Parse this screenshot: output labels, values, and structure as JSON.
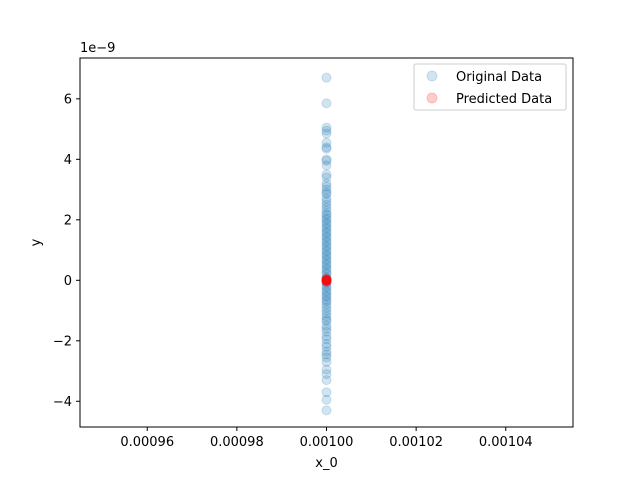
{
  "chart_data": {
    "type": "scatter",
    "title": "",
    "xlabel": "x_0",
    "ylabel": "y",
    "offset_text": "1e−9",
    "xlim": [
      0.000945,
      0.001055
    ],
    "ylim": [
      -4.85,
      7.35
    ],
    "x_ticks": [
      0.00096,
      0.00098,
      0.001,
      0.00102,
      0.00104
    ],
    "x_tick_labels": [
      "0.00096",
      "0.00098",
      "0.00100",
      "0.00102",
      "0.00104"
    ],
    "y_ticks": [
      -4,
      -2,
      0,
      2,
      4,
      6
    ],
    "y_tick_labels": [
      "−4",
      "−2",
      "0",
      "2",
      "4",
      "6"
    ],
    "grid": false,
    "legend_position": "top-right",
    "series": [
      {
        "name": "Original Data",
        "color": "#1f77b4",
        "alpha": 0.2,
        "x_value": 0.001,
        "y_values": [
          6.7,
          5.85,
          5.05,
          4.95,
          4.85,
          4.55,
          4.4,
          4.35,
          4.0,
          3.95,
          3.8,
          3.5,
          3.4,
          3.2,
          3.1,
          3.0,
          2.9,
          2.85,
          2.7,
          2.6,
          2.5,
          2.4,
          2.3,
          2.2,
          2.15,
          2.05,
          2.0,
          1.9,
          1.85,
          1.75,
          1.7,
          1.6,
          1.55,
          1.45,
          1.4,
          1.3,
          1.25,
          1.15,
          1.1,
          1.0,
          0.95,
          0.85,
          0.8,
          0.7,
          0.65,
          0.55,
          0.5,
          0.4,
          0.35,
          0.25,
          0.2,
          0.1,
          0.05,
          -0.05,
          -0.1,
          -0.2,
          -0.25,
          -0.35,
          -0.4,
          -0.5,
          -0.55,
          -0.65,
          -0.7,
          -0.8,
          -0.9,
          -1.0,
          -1.1,
          -1.2,
          -1.3,
          -1.35,
          -1.5,
          -1.6,
          -1.7,
          -1.85,
          -1.95,
          -2.1,
          -2.2,
          -2.35,
          -2.45,
          -2.55,
          -2.7,
          -2.95,
          -3.1,
          -3.3,
          -3.7,
          -3.95,
          -4.3
        ]
      },
      {
        "name": "Predicted Data",
        "color": "#ff0000",
        "alpha": 0.2,
        "x_value": 0.001,
        "y_values": [
          0.05,
          0.03,
          0.01,
          0.0,
          -0.01,
          -0.03,
          -0.05,
          0.02,
          -0.02,
          0.0
        ]
      }
    ]
  }
}
